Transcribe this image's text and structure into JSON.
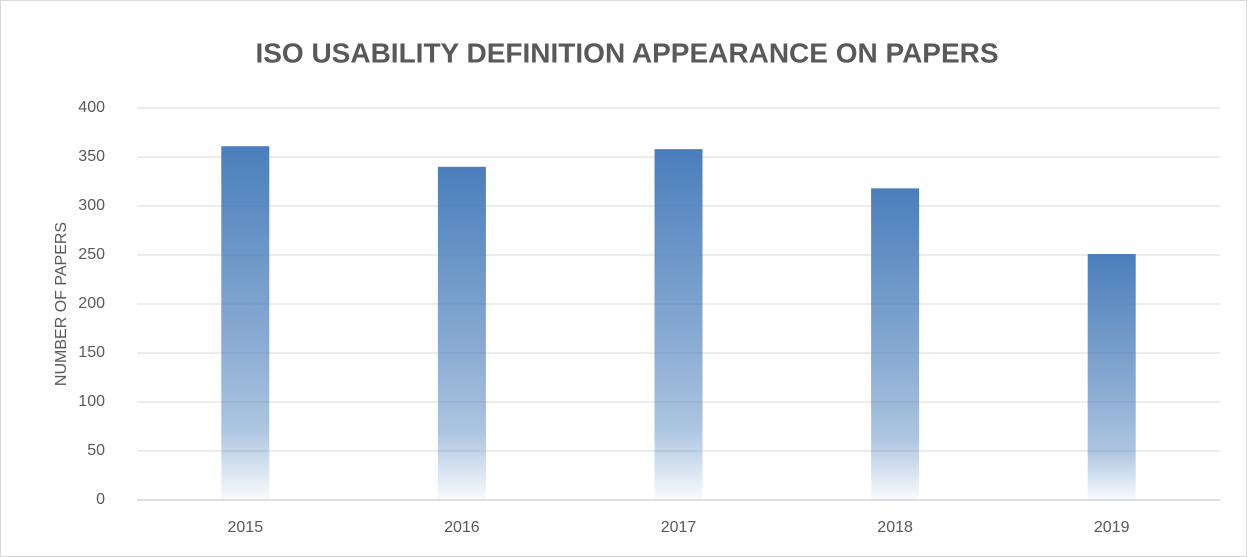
{
  "chart_data": {
    "type": "bar",
    "title": "ISO USABILITY DEFINITION APPEARANCE ON PAPERS",
    "y_label": "NUMBER OF PAPERS",
    "categories": [
      "2015",
      "2016",
      "2017",
      "2018",
      "2019"
    ],
    "values": [
      361,
      340,
      358,
      318,
      251
    ],
    "color": "#4a7ebb",
    "ylim": [
      0,
      400
    ],
    "yticks": [
      0,
      50,
      100,
      150,
      200,
      250,
      300,
      350,
      400
    ],
    "grid": true
  }
}
